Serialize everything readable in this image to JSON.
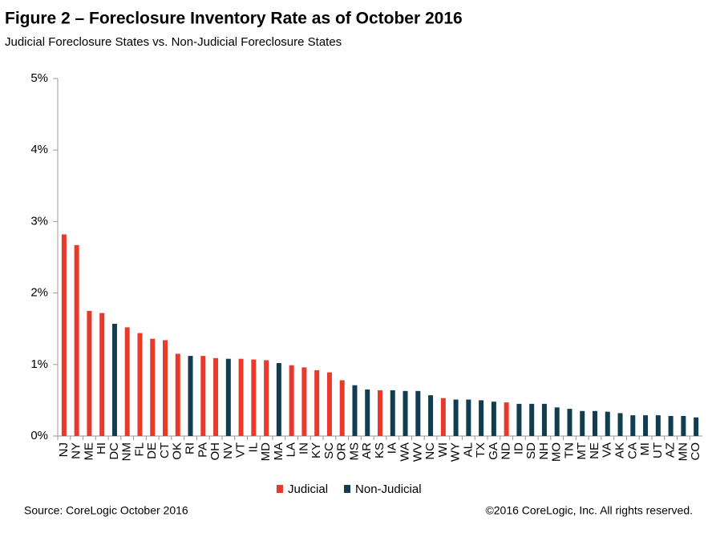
{
  "chart_data": {
    "type": "bar",
    "title": "Figure 2 – Foreclosure Inventory Rate as of October 2016",
    "subtitle": "Judicial Foreclosure States vs. Non-Judicial Foreclosure States",
    "categories": [
      "NJ",
      "NY",
      "ME",
      "HI",
      "DC",
      "NM",
      "FL",
      "DE",
      "CT",
      "OK",
      "RI",
      "PA",
      "OH",
      "NV",
      "VT",
      "IL",
      "MD",
      "MA",
      "LA",
      "IN",
      "KY",
      "SC",
      "OR",
      "MS",
      "AR",
      "KS",
      "IA",
      "WA",
      "WV",
      "NC",
      "WI",
      "WY",
      "AL",
      "TX",
      "GA",
      "ND",
      "ID",
      "SD",
      "NH",
      "MO",
      "TN",
      "MT",
      "NE",
      "VA",
      "AK",
      "CA",
      "MI",
      "UT",
      "AZ",
      "MN",
      "CO"
    ],
    "series": [
      {
        "name": "Judicial",
        "color": "#e8392a",
        "values": [
          2.82,
          2.67,
          1.75,
          1.72,
          null,
          1.52,
          1.44,
          1.36,
          1.34,
          1.15,
          null,
          1.12,
          1.09,
          null,
          1.08,
          1.07,
          1.06,
          null,
          0.99,
          0.96,
          0.92,
          0.89,
          0.78,
          null,
          null,
          0.64,
          null,
          null,
          null,
          null,
          0.53,
          null,
          null,
          null,
          null,
          0.47,
          null,
          null,
          null,
          null,
          null,
          null,
          null,
          null,
          null,
          null,
          null,
          null,
          null,
          null,
          null
        ]
      },
      {
        "name": "Non-Judicial",
        "color": "#123c4f",
        "values": [
          null,
          null,
          null,
          null,
          1.57,
          null,
          null,
          null,
          null,
          null,
          1.12,
          null,
          null,
          1.08,
          null,
          null,
          null,
          1.02,
          null,
          null,
          null,
          null,
          null,
          0.71,
          0.65,
          null,
          0.64,
          0.63,
          0.63,
          0.57,
          null,
          0.51,
          0.51,
          0.5,
          0.48,
          null,
          0.45,
          0.45,
          0.45,
          0.4,
          0.38,
          0.35,
          0.35,
          0.34,
          0.32,
          0.29,
          0.29,
          0.29,
          0.28,
          0.28,
          0.26
        ]
      }
    ],
    "ylim": [
      0,
      5
    ],
    "yticks": [
      {
        "value": 0,
        "label": "0%"
      },
      {
        "value": 1,
        "label": "1%"
      },
      {
        "value": 2,
        "label": "2%"
      },
      {
        "value": 3,
        "label": "3%"
      },
      {
        "value": 4,
        "label": "4%"
      },
      {
        "value": 5,
        "label": "5%"
      }
    ],
    "grid": false,
    "legend": "bottom",
    "source": "Source: CoreLogic  October 2016",
    "copyright": "©2016 CoreLogic, Inc. All rights reserved."
  }
}
